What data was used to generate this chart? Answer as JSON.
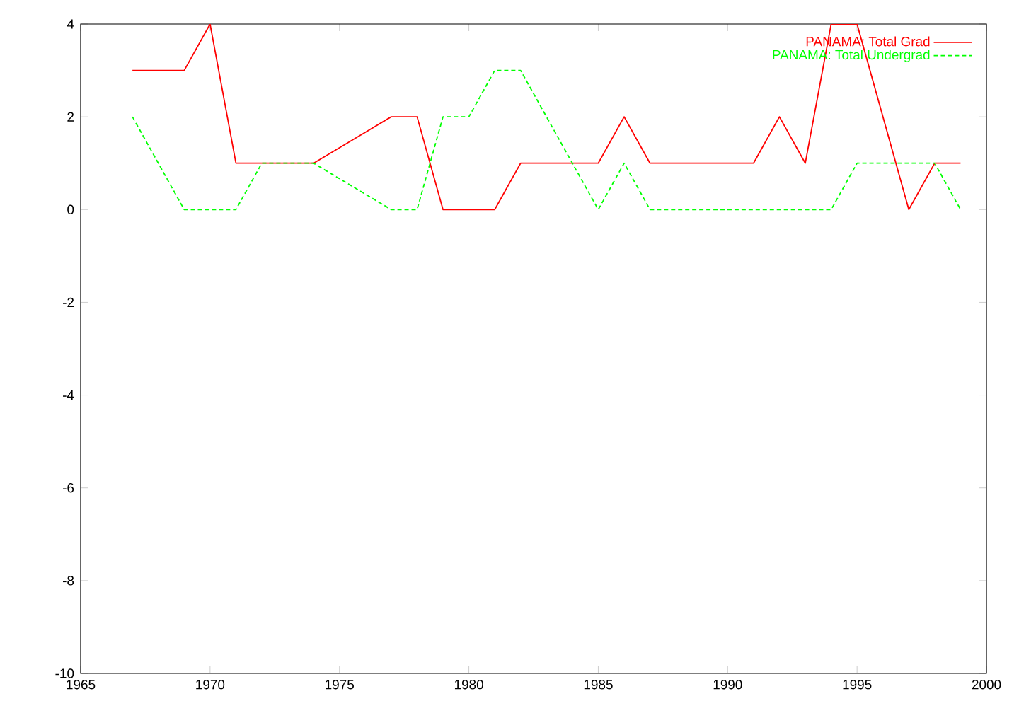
{
  "chart_data": {
    "type": "line",
    "series": [
      {
        "name": "PANAMA: Total Grad",
        "color": "#ff0000",
        "line_style": "solid",
        "x": [
          1967,
          1969,
          1970,
          1971,
          1974,
          1977,
          1978,
          1979,
          1981,
          1982,
          1985,
          1986,
          1987,
          1991,
          1992,
          1993,
          1994,
          1995,
          1997,
          1998,
          1999
        ],
        "values": [
          3,
          3,
          4,
          1,
          1,
          2,
          2,
          0,
          0,
          1,
          1,
          2,
          1,
          1,
          2,
          1,
          4,
          4,
          0,
          1,
          1
        ]
      },
      {
        "name": "PANAMA: Total Undergrad",
        "color": "#00ff00",
        "line_style": "dashed",
        "x": [
          1967,
          1969,
          1971,
          1972,
          1974,
          1977,
          1978,
          1979,
          1980,
          1981,
          1982,
          1985,
          1986,
          1987,
          1994,
          1995,
          1998,
          1999
        ],
        "values": [
          2,
          0,
          0,
          1,
          1,
          0,
          0,
          2,
          2,
          3,
          3,
          0,
          1,
          0,
          0,
          1,
          1,
          0
        ]
      }
    ],
    "xlim": [
      1965,
      2000
    ],
    "xticks": [
      1965,
      1970,
      1975,
      1980,
      1985,
      1990,
      1995,
      2000
    ],
    "ylim": [
      -10,
      4
    ],
    "yticks": [
      -10,
      -8,
      -6,
      -4,
      -2,
      0,
      2,
      4
    ],
    "grid": false,
    "legend": "top right",
    "marker": "none"
  }
}
